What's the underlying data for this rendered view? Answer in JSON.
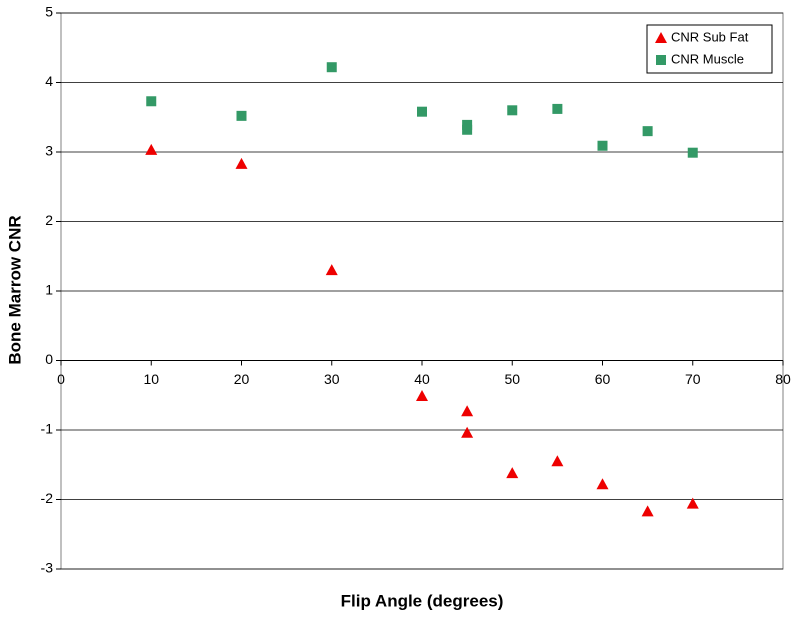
{
  "chart_data": {
    "type": "scatter",
    "x_label": "Flip Angle (degrees)",
    "y_label": "Bone Marrow CNR",
    "xlim": [
      0,
      80
    ],
    "xticks": [
      0,
      10,
      20,
      30,
      40,
      50,
      60,
      70,
      80
    ],
    "ylim": [
      -3,
      5
    ],
    "yticks": [
      -3,
      -2,
      -1,
      0,
      1,
      2,
      3,
      4,
      5
    ],
    "grid": true,
    "legend": "top-right",
    "series": [
      {
        "name": "CNR Sub Fat",
        "color": "#ee0000",
        "marker": "triangle",
        "x": [
          10,
          20,
          30,
          40,
          45,
          45,
          50,
          55,
          60,
          65,
          70
        ],
        "values": [
          3.03,
          2.83,
          1.3,
          -0.51,
          -0.73,
          -1.04,
          -1.62,
          -1.45,
          -1.78,
          -2.17,
          -2.06
        ]
      },
      {
        "name": "CNR Muscle",
        "color": "#339966",
        "marker": "square",
        "x": [
          10,
          20,
          30,
          40,
          45,
          45,
          50,
          55,
          60,
          65,
          70
        ],
        "values": [
          3.73,
          3.52,
          4.22,
          3.58,
          3.39,
          3.32,
          3.6,
          3.62,
          3.09,
          3.3,
          2.99
        ]
      }
    ]
  }
}
